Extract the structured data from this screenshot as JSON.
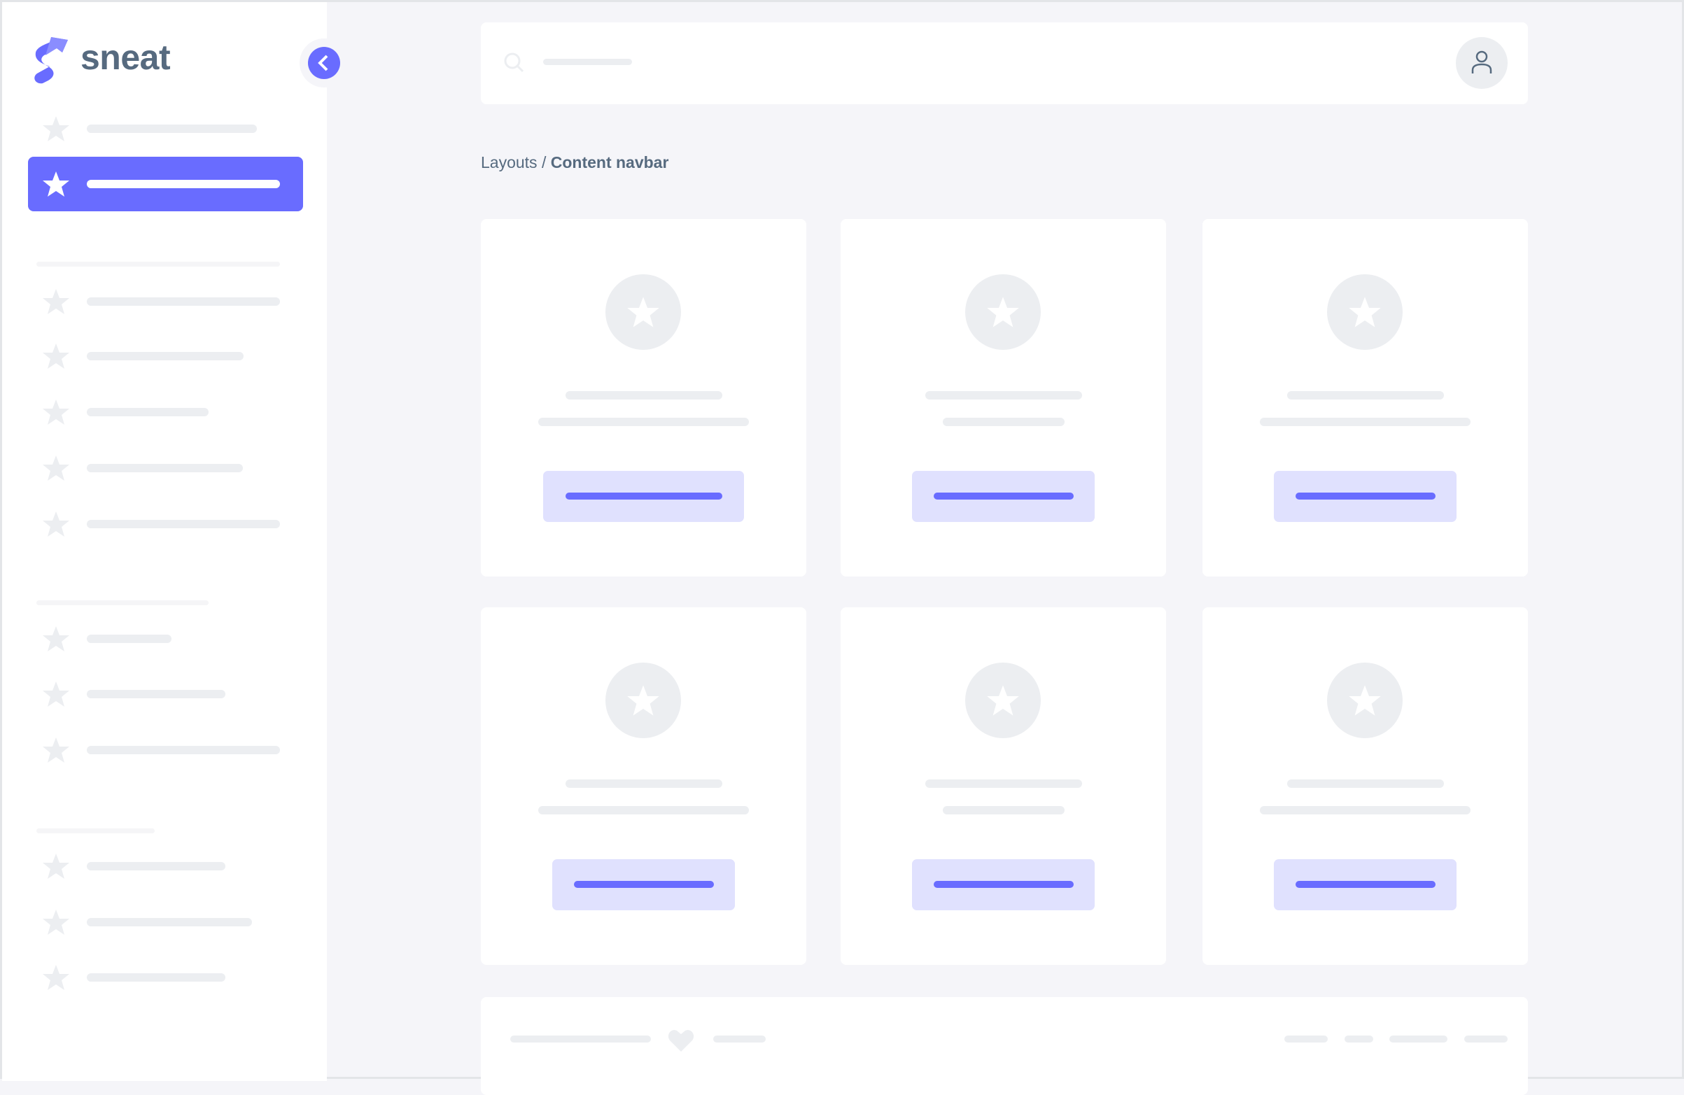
{
  "brand": {
    "name": "sneat",
    "logo_icon": "sneat-logo"
  },
  "colors": {
    "primary": "#696cff",
    "primary_light": "#e0e1fe",
    "text": "#566a7f",
    "skeleton": "#eceef1",
    "background": "#f5f5f9"
  },
  "sidebar": {
    "collapse_icon": "chevron-left-icon",
    "item_icon": "star-icon",
    "active_index": 1
  },
  "navbar": {
    "search_icon": "search-icon",
    "user_icon": "user-icon"
  },
  "breadcrumb": {
    "parent": "Layouts",
    "separator": "/",
    "current": "Content navbar"
  },
  "cards": {
    "count": 6,
    "icon": "star-icon"
  },
  "footer": {
    "icon": "heart-icon"
  }
}
